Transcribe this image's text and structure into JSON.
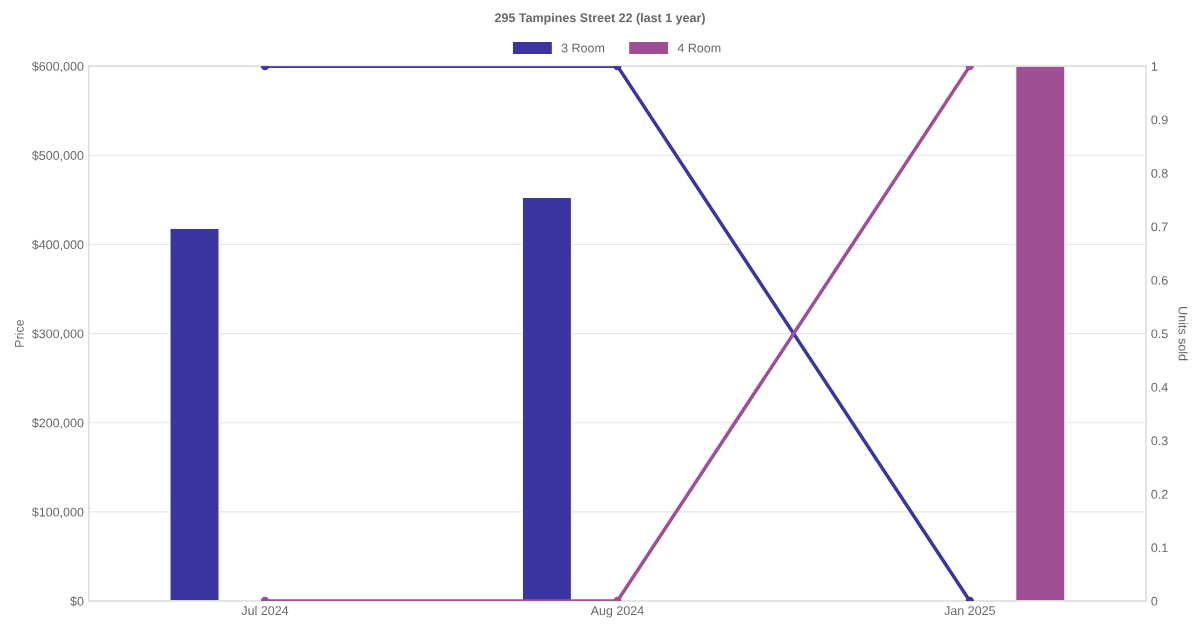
{
  "chart_data": {
    "type": "bar",
    "title": "295 Tampines Street 22 (last 1 year)",
    "ylabel": "Price",
    "y2label": "Units sold",
    "categories": [
      "Jul 2024",
      "Aug 2024",
      "Jan 2025"
    ],
    "series": [
      {
        "name": "3 Room",
        "color": "#3a35a0",
        "values": [
          418000,
          453000,
          null
        ]
      },
      {
        "name": "4 Room",
        "color": "#9e4f95",
        "values": [
          null,
          null,
          600000
        ]
      },
      {
        "type": "line",
        "axis": "y2",
        "color": "#3a35a0",
        "values": [
          1,
          1,
          0
        ]
      },
      {
        "type": "line",
        "axis": "y2",
        "color": "#9e4f95",
        "values": [
          0,
          0,
          1
        ]
      }
    ],
    "ylim": [
      0,
      600000
    ],
    "yticks": [
      {
        "value": 0,
        "label": "$0"
      },
      {
        "value": 100000,
        "label": "$100,000"
      },
      {
        "value": 200000,
        "label": "$200,000"
      },
      {
        "value": 300000,
        "label": "$300,000"
      },
      {
        "value": 400000,
        "label": "$400,000"
      },
      {
        "value": 500000,
        "label": "$500,000"
      },
      {
        "value": 600000,
        "label": "$600,000"
      }
    ],
    "y2lim": [
      0,
      1
    ],
    "y2ticks": [
      0,
      0.1,
      0.2,
      0.3,
      0.4,
      0.5,
      0.6,
      0.7,
      0.8,
      0.9,
      1
    ],
    "grid": "y",
    "legend": "top",
    "marker": "circle",
    "line_style": "solid"
  }
}
